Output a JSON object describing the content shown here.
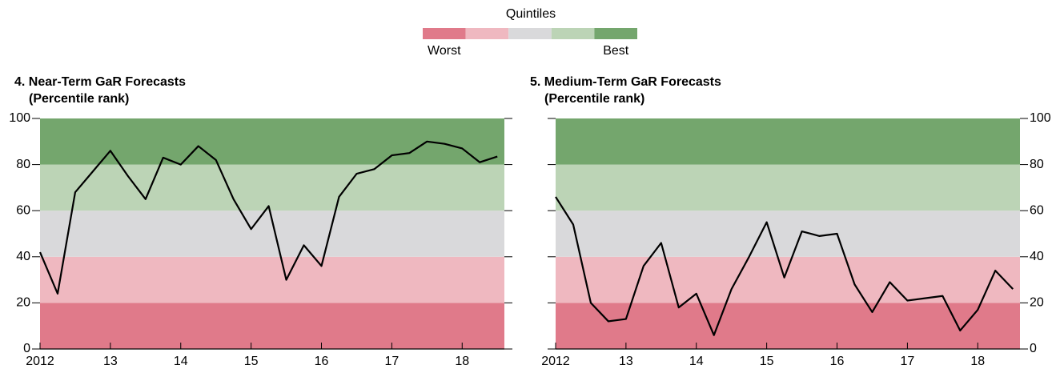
{
  "legend": {
    "title": "Quintiles",
    "colors": [
      "#e07a8a",
      "#efb8c0",
      "#d9d9db",
      "#bcd4b6",
      "#74a66d"
    ],
    "labels": [
      "Worst",
      "Best"
    ]
  },
  "chart_data": [
    {
      "type": "line",
      "title": "4. Near-Term GaR Forecasts",
      "subtitle": "(Percentile rank)",
      "x": [
        2012,
        2012.25,
        2012.5,
        2012.75,
        2013,
        2013.25,
        2013.5,
        2013.75,
        2014,
        2014.25,
        2014.5,
        2014.75,
        2015,
        2015.25,
        2015.5,
        2015.75,
        2016,
        2016.25,
        2016.5,
        2016.75,
        2017,
        2017.25,
        2017.5,
        2017.75,
        2018,
        2018.25,
        2018.5
      ],
      "series": [
        {
          "color": "#000000",
          "values": [
            42,
            24,
            68,
            77,
            86,
            75,
            65,
            83,
            80,
            88,
            82,
            65,
            52,
            62,
            30,
            45,
            36,
            66,
            76,
            78,
            84,
            85,
            90,
            89,
            87,
            81,
            83.5
          ]
        }
      ],
      "band_edges": [
        0,
        20,
        40,
        60,
        80,
        100
      ],
      "xlim": [
        2012,
        2018.6
      ],
      "xticks": [
        2012,
        {
          "value": 2013,
          "label": "13"
        },
        {
          "value": 2014,
          "label": "14"
        },
        {
          "value": 2015,
          "label": "15"
        },
        {
          "value": 2016,
          "label": "16"
        },
        {
          "value": 2017,
          "label": "17"
        },
        {
          "value": 2018,
          "label": "18"
        }
      ],
      "ylim": [
        0,
        100
      ],
      "yticks": [
        0,
        20,
        40,
        60,
        80,
        100
      ],
      "yaxis_side": "left"
    },
    {
      "type": "line",
      "title": "5. Medium-Term GaR Forecasts",
      "subtitle": "(Percentile rank)",
      "x": [
        2012,
        2012.25,
        2012.5,
        2012.75,
        2013,
        2013.25,
        2013.5,
        2013.75,
        2014,
        2014.25,
        2014.5,
        2014.75,
        2015,
        2015.25,
        2015.5,
        2015.75,
        2016,
        2016.25,
        2016.5,
        2016.75,
        2017,
        2017.25,
        2017.5,
        2017.75,
        2018,
        2018.25,
        2018.5
      ],
      "series": [
        {
          "color": "#000000",
          "values": [
            66,
            54,
            20,
            12,
            13,
            36,
            46,
            18,
            24,
            6,
            26,
            40,
            55,
            31,
            51,
            49,
            50,
            28,
            16,
            29,
            21,
            22,
            23,
            8,
            17,
            34,
            26
          ]
        }
      ],
      "band_edges": [
        0,
        20,
        40,
        60,
        80,
        100
      ],
      "xlim": [
        2012,
        2018.6
      ],
      "xticks": [
        2012,
        {
          "value": 2013,
          "label": "13"
        },
        {
          "value": 2014,
          "label": "14"
        },
        {
          "value": 2015,
          "label": "15"
        },
        {
          "value": 2016,
          "label": "16"
        },
        {
          "value": 2017,
          "label": "17"
        },
        {
          "value": 2018,
          "label": "18"
        }
      ],
      "ylim": [
        0,
        100
      ],
      "yticks": [
        0,
        20,
        40,
        60,
        80,
        100
      ],
      "yaxis_side": "right"
    }
  ]
}
